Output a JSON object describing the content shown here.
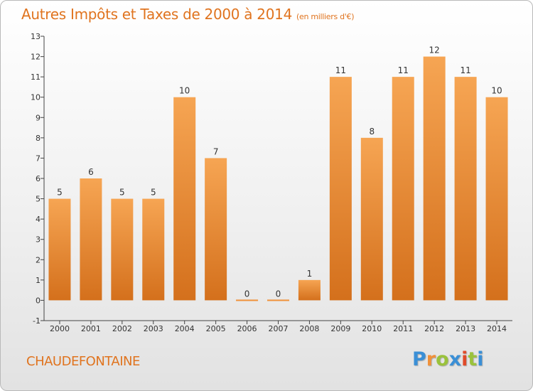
{
  "chart_data": {
    "type": "bar",
    "title": "Autres Impôts et Taxes de 2000 à 2014",
    "subtitle": "(en milliers d'€)",
    "categories": [
      "2000",
      "2001",
      "2002",
      "2003",
      "2004",
      "2005",
      "2006",
      "2007",
      "2008",
      "2009",
      "2010",
      "2011",
      "2012",
      "2013",
      "2014"
    ],
    "values": [
      5,
      6,
      5,
      5,
      10,
      7,
      0,
      0,
      1,
      11,
      8,
      11,
      12,
      11,
      10
    ],
    "ylim": [
      -1,
      13
    ],
    "yticks": [
      -1,
      0,
      1,
      2,
      3,
      4,
      5,
      6,
      7,
      8,
      9,
      10,
      11,
      12,
      13
    ],
    "grid": false,
    "bar_color": "#f0913a",
    "bar_color_light": "#f6a553",
    "bar_color_dark": "#d4701c"
  },
  "footer": {
    "place": "CHAUDEFONTAINE",
    "logo_letters": [
      "P",
      "r",
      "o",
      "x",
      "i",
      "t",
      "i"
    ],
    "logo_colors": [
      "#3a8fd6",
      "#f0913a",
      "#9ac23c",
      "#3a8fd6",
      "#e04b2a",
      "#9ac23c",
      "#3a8fd6"
    ]
  }
}
